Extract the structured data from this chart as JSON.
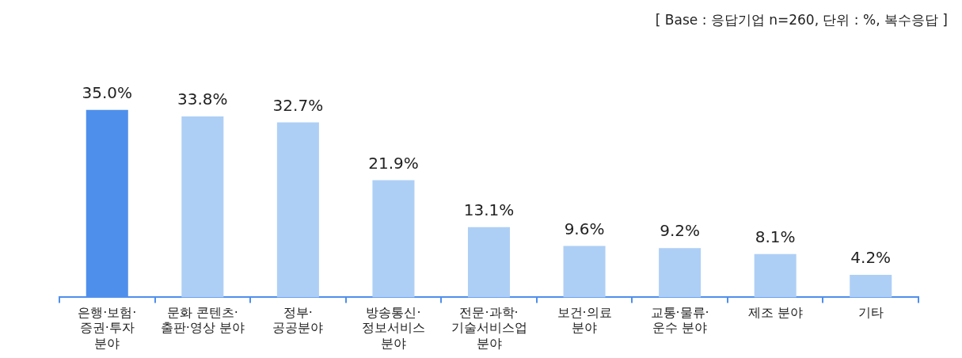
{
  "chart_data": {
    "type": "bar",
    "annotations": [
      "[ Base : 응답기업 n=260, 단위 : %, 복수응답 ]"
    ],
    "categories": [
      "은행·보험·\n증권·투자\n분야",
      "문화 콘텐츠·\n출판·영상 분야",
      "정부·\n공공분야",
      "방송통신·\n정보서비스\n분야",
      "전문·과학·\n기술서비스업\n분야",
      "보건·의료\n분야",
      "교통·물류·\n운수 분야",
      "제조 분야",
      "기타"
    ],
    "values": [
      35.0,
      33.8,
      32.7,
      21.9,
      13.1,
      9.6,
      9.2,
      8.1,
      4.2
    ],
    "colors": [
      "#4f8fec",
      "#aecff5",
      "#aecff5",
      "#aecff5",
      "#aecff5",
      "#aecff5",
      "#aecff5",
      "#aecff5",
      "#aecff5"
    ],
    "value_labels": [
      "35.0%",
      "33.8%",
      "32.7%",
      "21.9%",
      "13.1%",
      "9.6%",
      "9.2%",
      "8.1%",
      "4.2%"
    ],
    "grid": false,
    "legend": false
  }
}
